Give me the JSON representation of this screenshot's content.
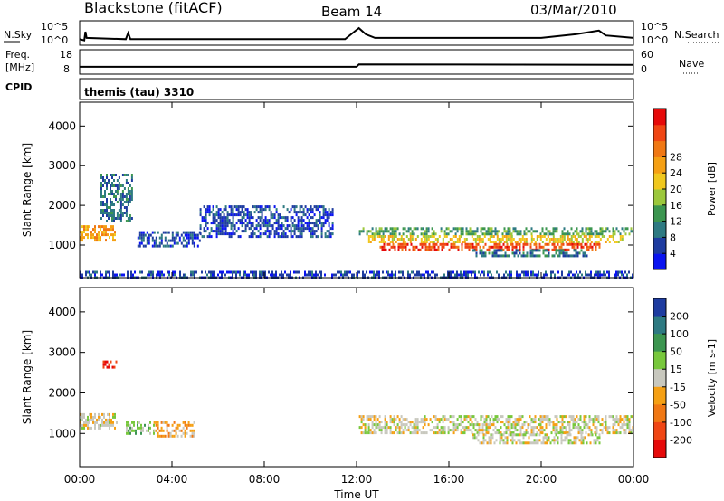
{
  "header": {
    "site": "Blackstone (fitACF)",
    "beam": "Beam 14",
    "date": "03/Mar/2010",
    "cpid": "themis (tau) 3310"
  },
  "strip_labels": {
    "nsky": "N.Sky",
    "nsky_ticks": [
      "10^5",
      "10^0"
    ],
    "nsearch": "N.Search",
    "nsearch_ticks": [
      "10^5",
      "10^0"
    ],
    "freq_line1": "Freq.",
    "freq_line2": "[MHz]",
    "freq_ticks": [
      "18",
      "8"
    ],
    "nave": "Nave",
    "nave_ticks": [
      "60",
      "0"
    ],
    "cpid_label": "CPID"
  },
  "chart_data": [
    {
      "type": "heatmap",
      "panel": "power",
      "ylabel": "Slant Range [km]",
      "xlabel": "",
      "x_ticks": [
        "00:00",
        "04:00",
        "08:00",
        "12:00",
        "16:00",
        "20:00",
        "00:00"
      ],
      "x_tick_hours": [
        0,
        4,
        8,
        12,
        16,
        20,
        24
      ],
      "y_ticks": [
        1000,
        2000,
        3000,
        4000
      ],
      "ylim": [
        180,
        4600
      ],
      "xlim_hours": [
        0,
        24
      ],
      "colorbar": {
        "label": "Power [dB]",
        "ticks": [
          "4",
          "8",
          "12",
          "16",
          "20",
          "24",
          "28"
        ],
        "colors": [
          "#0a14f0",
          "#1e3ca0",
          "#2e7a82",
          "#3c9650",
          "#9cc83c",
          "#f0c81e",
          "#f5a014",
          "#f07814",
          "#f04614",
          "#e60a0a"
        ]
      },
      "regions": [
        {
          "t0": 0.0,
          "t1": 1.5,
          "r0": 1100,
          "r1": 1500,
          "level": 6
        },
        {
          "t0": 0.9,
          "t1": 2.3,
          "r0": 1600,
          "r1": 2800,
          "level": 2
        },
        {
          "t0": 2.5,
          "t1": 5.2,
          "r0": 1000,
          "r1": 1350,
          "level": 1
        },
        {
          "t0": 5.2,
          "t1": 11.0,
          "r0": 1200,
          "r1": 2000,
          "level": 1
        },
        {
          "t0": 12.1,
          "t1": 24.0,
          "r0": 1250,
          "r1": 1450,
          "level": 3
        },
        {
          "t0": 12.5,
          "t1": 23.5,
          "r0": 1050,
          "r1": 1250,
          "level": 5
        },
        {
          "t0": 13.0,
          "t1": 22.5,
          "r0": 900,
          "r1": 1050,
          "level": 8
        },
        {
          "t0": 17.0,
          "t1": 22.0,
          "r0": 700,
          "r1": 900,
          "level": 2
        },
        {
          "t0": 0.0,
          "t1": 24.0,
          "r0": 200,
          "r1": 350,
          "level": 1
        }
      ]
    },
    {
      "type": "heatmap",
      "panel": "velocity",
      "ylabel": "Slant Range [km]",
      "xlabel": "Time UT",
      "x_ticks": [
        "00:00",
        "04:00",
        "08:00",
        "12:00",
        "16:00",
        "20:00",
        "00:00"
      ],
      "x_tick_hours": [
        0,
        4,
        8,
        12,
        16,
        20,
        24
      ],
      "y_ticks": [
        1000,
        2000,
        3000,
        4000
      ],
      "ylim": [
        180,
        4600
      ],
      "xlim_hours": [
        0,
        24
      ],
      "colorbar": {
        "label": "Velocity [m s-1]",
        "ticks": [
          "200",
          "100",
          "50",
          "15",
          "-15",
          "-50",
          "-100",
          "-200"
        ],
        "colors": [
          "#1e3ca0",
          "#2e7a82",
          "#3c9650",
          "#78c83c",
          "#c8c8be",
          "#f5a014",
          "#f07814",
          "#f04614",
          "#e60a0a"
        ]
      },
      "regions": [
        {
          "t0": 0.0,
          "t1": 1.7,
          "r0": 1150,
          "r1": 1500,
          "level": 4
        },
        {
          "t0": 1.0,
          "t1": 1.6,
          "r0": 2600,
          "r1": 2800,
          "level": 8
        },
        {
          "t0": 2.0,
          "t1": 3.2,
          "r0": 1000,
          "r1": 1300,
          "level": 3
        },
        {
          "t0": 3.2,
          "t1": 5.0,
          "r0": 900,
          "r1": 1300,
          "level": 5
        },
        {
          "t0": 12.1,
          "t1": 24.0,
          "r0": 1000,
          "r1": 1450,
          "level": 4
        },
        {
          "t0": 17.0,
          "t1": 22.5,
          "r0": 750,
          "r1": 1000,
          "level": 4
        }
      ]
    }
  ],
  "strips": {
    "nsky_profile": [
      [
        0,
        0.25
      ],
      [
        0.2,
        0.2
      ],
      [
        0.25,
        0.55
      ],
      [
        0.3,
        0.3
      ],
      [
        2,
        0.25
      ],
      [
        2.1,
        0.5
      ],
      [
        2.2,
        0.25
      ],
      [
        11.5,
        0.25
      ],
      [
        11.9,
        0.55
      ],
      [
        12.1,
        0.7
      ],
      [
        12.4,
        0.45
      ],
      [
        12.8,
        0.3
      ],
      [
        20,
        0.3
      ],
      [
        21.5,
        0.45
      ],
      [
        22.5,
        0.6
      ],
      [
        22.8,
        0.4
      ],
      [
        24,
        0.3
      ]
    ],
    "freq_profile": [
      [
        0,
        0.3
      ],
      [
        12,
        0.3
      ],
      [
        12.1,
        0.4
      ],
      [
        24,
        0.38
      ]
    ]
  }
}
